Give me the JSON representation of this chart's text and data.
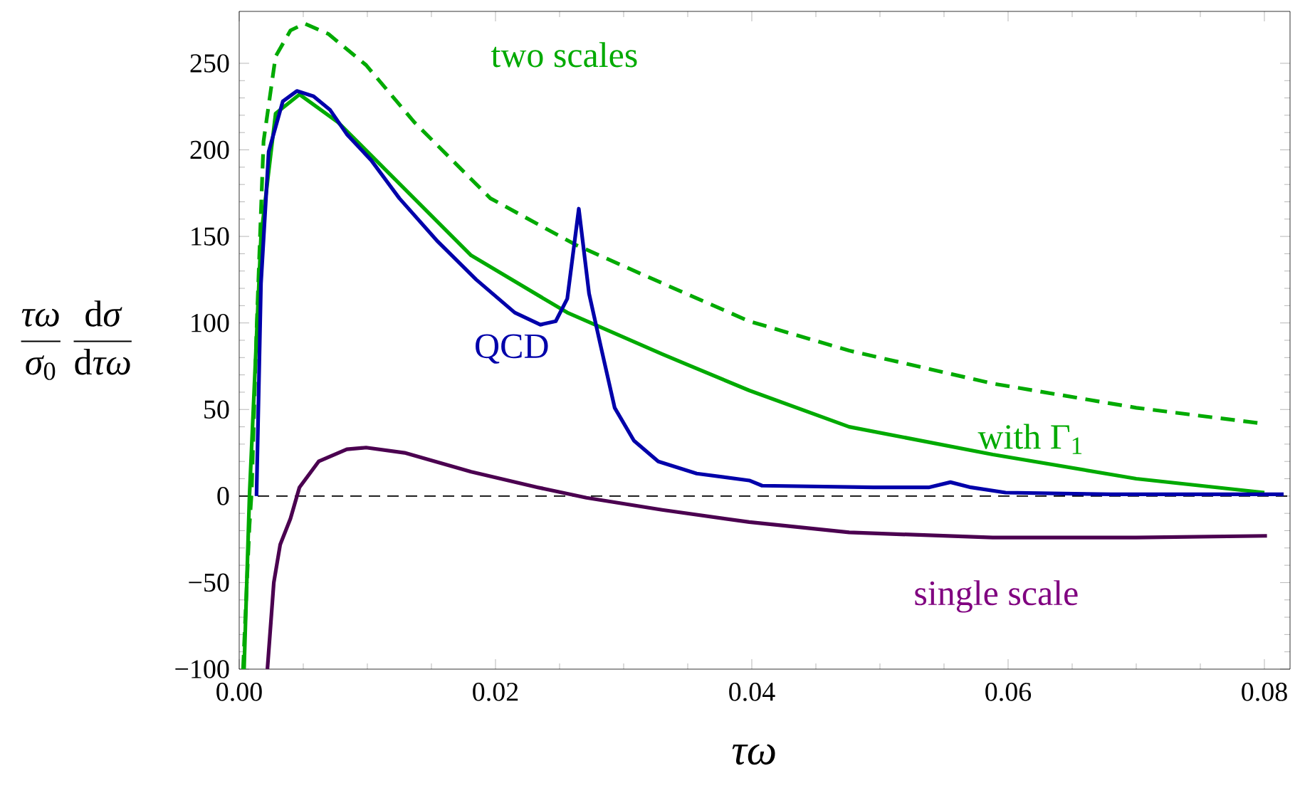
{
  "chart_data": {
    "type": "line",
    "xlabel": "τω",
    "ylabel": "\\frac{\\textit{τω}}{\\textit{σ}_{\\text{0}}}\\;\\frac{\\text{d}\\textit{σ}}{\\text{d}\\textit{τω}}",
    "xlim": [
      0,
      0.082
    ],
    "ylim": [
      -100,
      280
    ],
    "xticks": [
      {
        "value": 0,
        "label": "0.00"
      },
      {
        "value": 0.02,
        "label": "0.02"
      },
      {
        "value": 0.04,
        "label": "0.04"
      },
      {
        "value": 0.06,
        "label": "0.06"
      },
      {
        "value": 0.08,
        "label": "0.08"
      }
    ],
    "yticks": [
      {
        "value": -100,
        "label": "−100"
      },
      {
        "value": -50,
        "label": "−50"
      },
      0,
      50,
      100,
      150,
      200,
      250
    ],
    "grid": false,
    "marker": "none",
    "ref_lines": [
      {
        "axis": "y",
        "value": 0,
        "color": "#000000",
        "line_style": "dashed"
      }
    ],
    "series": [
      {
        "name": "two scales",
        "color": "#00aa00",
        "line_style": "dashed",
        "x": [
          0.0003,
          0.0008,
          0.00097,
          0.00135,
          0.0019,
          0.00284,
          0.004,
          0.0051,
          0.00695,
          0.0099,
          0.01366,
          0.0196,
          0.0263,
          0.033,
          0.0398,
          0.0476,
          0.0588,
          0.07,
          0.0797
        ],
        "values": [
          -100,
          -17,
          2,
          95,
          205,
          254,
          269,
          273,
          267,
          249,
          216,
          172,
          145,
          123,
          101,
          84,
          65,
          51,
          42
        ]
      },
      {
        "name": "with Γ$_{1}$",
        "color": "#00aa00",
        "line_style": "solid",
        "x": [
          0.00038,
          0.0008,
          0.0017,
          0.00284,
          0.0047,
          0.0077,
          0.01216,
          0.0181,
          0.0256,
          0.033,
          0.0398,
          0.0476,
          0.0588,
          0.07,
          0.08
        ],
        "values": [
          -100,
          0,
          150,
          221,
          232,
          216,
          183,
          139,
          106,
          82,
          61,
          40,
          24,
          10,
          2
        ]
      },
      {
        "name": "QCD",
        "color": "#0000aa",
        "line_style": "solid",
        "x": [
          0.00135,
          0.0017,
          0.0023,
          0.0034,
          0.0045,
          0.0058,
          0.0071,
          0.0084,
          0.0103,
          0.0125,
          0.0155,
          0.0185,
          0.0215,
          0.0235,
          0.0247,
          0.0256,
          0.0265,
          0.0273,
          0.0282,
          0.0293,
          0.0308,
          0.0327,
          0.0357,
          0.0398,
          0.0408,
          0.0495,
          0.0538,
          0.0555,
          0.0571,
          0.0598,
          0.068,
          0.0815
        ],
        "values": [
          0,
          123,
          199,
          228,
          234,
          231,
          223,
          209,
          194,
          172,
          147,
          125,
          106,
          99,
          101,
          114,
          166,
          117,
          87,
          51,
          32,
          20,
          13,
          9,
          6,
          5,
          5,
          8,
          5,
          2,
          1,
          1
        ]
      },
      {
        "name": "single scale",
        "color": "#4b0050",
        "line_style": "solid",
        "x": [
          0.0022,
          0.0027,
          0.0032,
          0.004,
          0.0047,
          0.0062,
          0.0084,
          0.0099,
          0.0129,
          0.0181,
          0.0233,
          0.0271,
          0.033,
          0.0398,
          0.0476,
          0.0588,
          0.07,
          0.0802
        ],
        "values": [
          -100,
          -50,
          -28,
          -13,
          5,
          20,
          27,
          28,
          25,
          14,
          5,
          -1,
          -8,
          -15,
          -21,
          -24,
          -24,
          -23
        ]
      }
    ]
  }
}
